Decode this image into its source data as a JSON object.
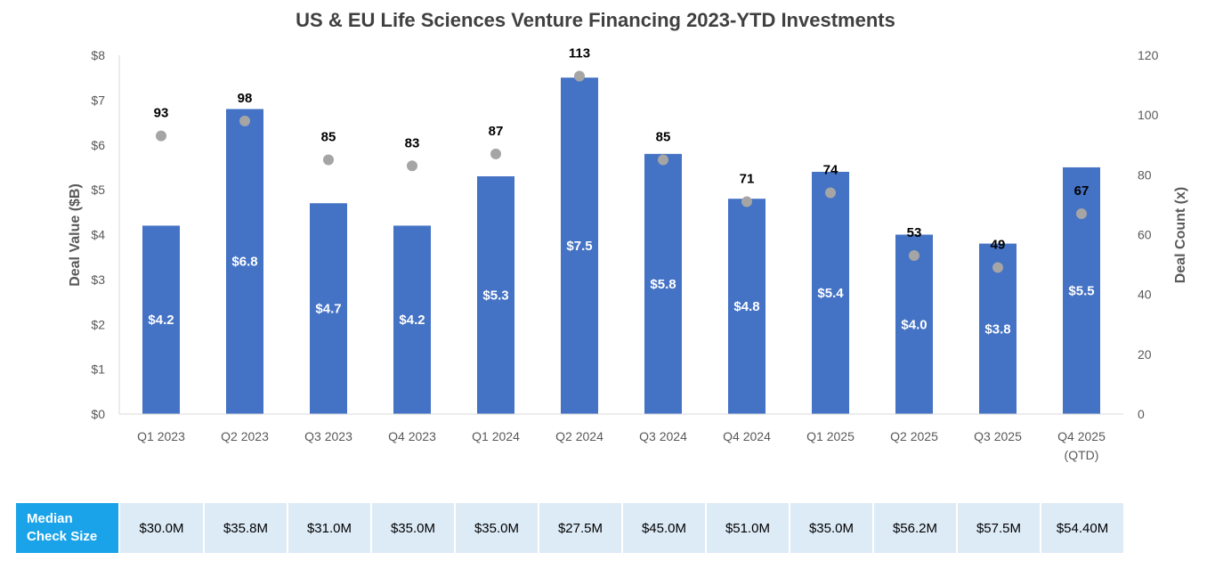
{
  "chart_data": {
    "type": "bar",
    "title": "US & EU Life Sciences Venture Financing 2023-YTD Investments",
    "ylabel": "Deal Value ($B)",
    "y2label": "Deal Count (x)",
    "ylim": [
      0,
      8
    ],
    "y2lim": [
      0,
      120
    ],
    "yticks": [
      "$0",
      "$1",
      "$2",
      "$3",
      "$4",
      "$5",
      "$6",
      "$7",
      "$8"
    ],
    "y2ticks": [
      "0",
      "20",
      "40",
      "60",
      "80",
      "100",
      "120"
    ],
    "categories": [
      [
        "Q1 2023"
      ],
      [
        "Q2 2023"
      ],
      [
        "Q3 2023"
      ],
      [
        "Q4 2023"
      ],
      [
        "Q1 2024"
      ],
      [
        "Q2 2024"
      ],
      [
        "Q3 2024"
      ],
      [
        "Q4 2024"
      ],
      [
        "Q1 2025"
      ],
      [
        "Q2 2025"
      ],
      [
        "Q3 2025"
      ],
      [
        "Q4 2025",
        "(QTD)"
      ]
    ],
    "series": [
      {
        "type": "bar",
        "axis": "left",
        "values": [
          4.2,
          6.8,
          4.7,
          4.2,
          5.3,
          7.5,
          5.8,
          4.8,
          5.4,
          4.0,
          3.8,
          5.5
        ],
        "labels": [
          "$4.2",
          "$6.8",
          "$4.7",
          "$4.2",
          "$5.3",
          "$7.5",
          "$5.8",
          "$4.8",
          "$5.4",
          "$4.0",
          "$3.8",
          "$5.5"
        ],
        "color": "#4472c4"
      },
      {
        "type": "scatter",
        "axis": "right",
        "values": [
          93,
          98,
          85,
          83,
          87,
          113,
          85,
          71,
          74,
          53,
          49,
          67
        ],
        "labels": [
          "93",
          "98",
          "85",
          "83",
          "87",
          "113",
          "85",
          "71",
          "74",
          "53",
          "49",
          "67"
        ],
        "color": "#a5a5a5"
      }
    ],
    "grid": false,
    "legend": "none"
  },
  "median_table": {
    "header": "Median Check Size",
    "values": [
      "$30.0M",
      "$35.8M",
      "$31.0M",
      "$35.0M",
      "$35.0M",
      "$27.5M",
      "$45.0M",
      "$51.0M",
      "$35.0M",
      "$56.2M",
      "$57.5M",
      "$54.40M"
    ]
  }
}
